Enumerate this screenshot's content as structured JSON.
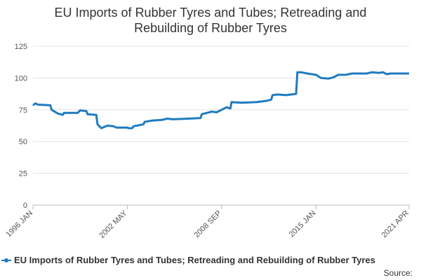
{
  "chart_data": {
    "type": "line",
    "title": [
      "EU Imports of Rubber Tyres and Tubes; Retreading and",
      "Rebuilding of Rubber Tyres"
    ],
    "source": "Source:",
    "x": [
      "1996-01",
      "1996-03",
      "1996-05",
      "1997-03",
      "1997-04",
      "1997-09",
      "1998-01",
      "1998-02",
      "1999-01",
      "1999-03",
      "1999-08",
      "1999-09",
      "2000-04",
      "2000-05",
      "2000-08",
      "2001-01",
      "2001-06",
      "2001-08",
      "2002-05",
      "2002-06",
      "2002-09",
      "2002-10",
      "2003-06",
      "2003-07",
      "2004-01",
      "2004-09",
      "2005-01",
      "2005-06",
      "2006-06",
      "2007-04",
      "2007-05",
      "2008-01",
      "2008-05",
      "2008-09",
      "2009-01",
      "2009-04",
      "2009-05",
      "2010-01",
      "2011-01",
      "2011-09",
      "2012-01",
      "2012-02",
      "2012-06",
      "2013-01",
      "2013-05",
      "2013-09",
      "2013-10",
      "2014-01",
      "2014-06",
      "2015-01",
      "2015-05",
      "2015-11",
      "2016-03",
      "2016-07",
      "2017-01",
      "2017-06",
      "2018-06",
      "2018-10",
      "2019-04",
      "2019-07",
      "2019-10",
      "2020-01",
      "2021-04"
    ],
    "series": [
      {
        "name": "EU Imports of Rubber Tyres and Tubes; Retreading and Rebuilding of Rubber Tyres",
        "color": "#1f7bbf",
        "values": [
          78.5,
          80,
          79,
          78.5,
          75,
          72,
          71,
          72.5,
          72.5,
          74.5,
          74,
          71.5,
          71,
          63.5,
          60.5,
          62.5,
          62,
          61,
          61,
          60.5,
          60.5,
          62,
          63.5,
          65.5,
          66.5,
          67,
          68,
          67.5,
          68,
          68.5,
          71.5,
          73.5,
          73,
          75,
          77,
          76,
          81,
          80.5,
          81,
          82,
          83,
          86.5,
          87,
          86.5,
          87,
          87.5,
          104.5,
          104.5,
          103.5,
          102.5,
          100,
          99.5,
          100.5,
          102.5,
          102.5,
          103.5,
          103.5,
          104.5,
          104,
          104.5,
          103,
          103.5,
          103.5
        ]
      }
    ],
    "xlim": [
      "1996-01",
      "2021-04"
    ],
    "xticks": [
      {
        "value": "1996-01",
        "label": "1996 JAN"
      },
      {
        "value": "2002-05",
        "label": "2002 MAY"
      },
      {
        "value": "2008-09",
        "label": "2008 SEP"
      },
      {
        "value": "2015-01",
        "label": "2015 JAN"
      },
      {
        "value": "2021-04",
        "label": "2021 APR"
      }
    ],
    "ylim": [
      0,
      125
    ],
    "yticks": [
      0,
      25,
      50,
      75,
      100,
      125
    ],
    "grid": true
  }
}
